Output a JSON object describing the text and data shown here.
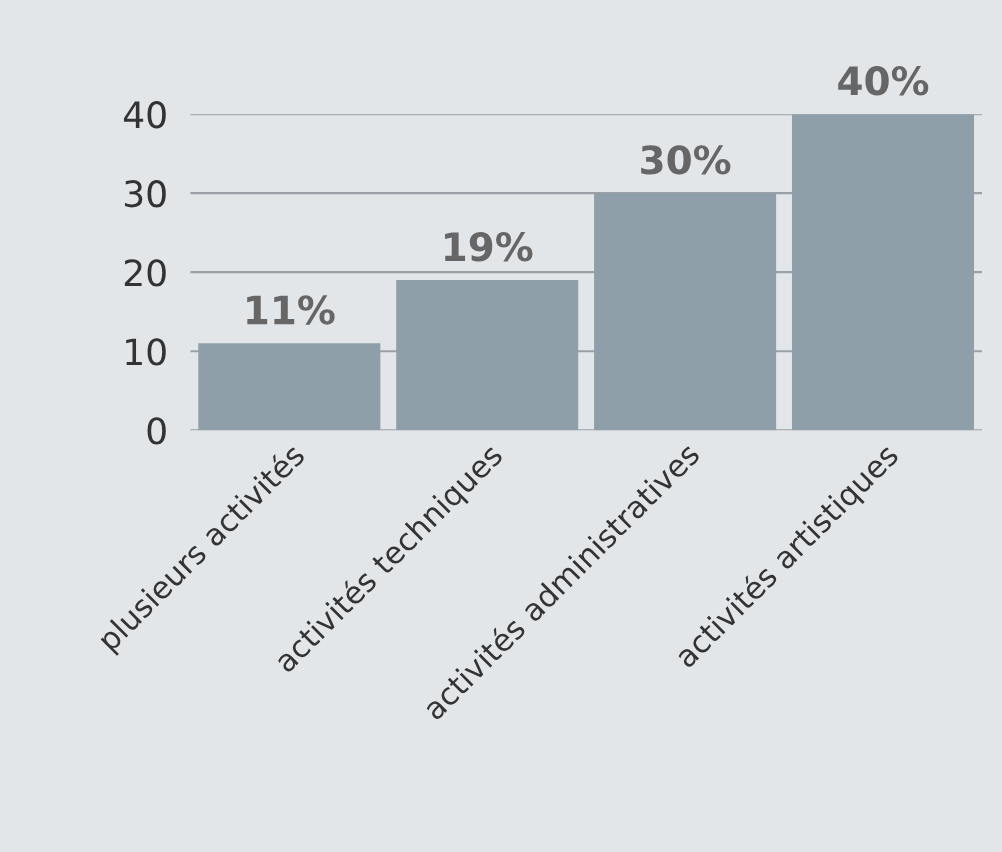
{
  "chart_data": {
    "type": "bar",
    "categories": [
      "plusieurs activités",
      "activités techniques",
      "activités administratives",
      "activités artistiques"
    ],
    "values": [
      11,
      19,
      30,
      40
    ],
    "value_labels": [
      "11%",
      "19%",
      "30%",
      "40%"
    ],
    "color": "#8f9fa9",
    "ylim": [
      0,
      40
    ],
    "yticks": [
      0,
      10,
      20,
      30,
      40
    ],
    "grid": "y"
  }
}
